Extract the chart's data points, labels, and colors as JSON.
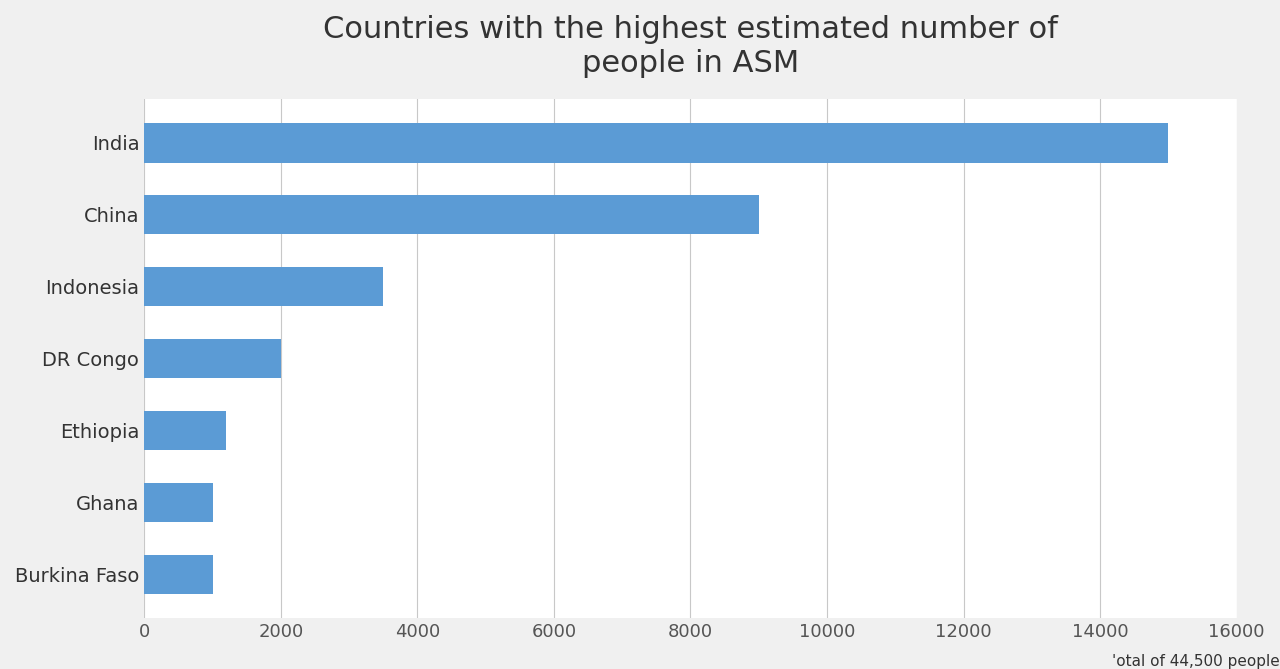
{
  "title": "Countries with the highest estimated number of\npeople in ASM",
  "categories": [
    "India",
    "China",
    "Indonesia",
    "DR Congo",
    "Ethiopia",
    "Ghana",
    "Burkina Faso"
  ],
  "values": [
    15000,
    9000,
    3500,
    2000,
    1200,
    1000,
    1000
  ],
  "bar_color": "#5B9BD5",
  "xlim": [
    0,
    16000
  ],
  "xticks": [
    0,
    2000,
    4000,
    6000,
    8000,
    10000,
    12000,
    14000,
    16000
  ],
  "xtick_labels": [
    "0",
    "2000",
    "4000",
    "6000",
    "8000",
    "10000",
    "12000",
    "14000",
    "16000"
  ],
  "footnote": "'otal of 44,500 people",
  "background_color": "#f0f0f0",
  "plot_background_color": "#ffffff",
  "title_fontsize": 22,
  "label_fontsize": 14,
  "tick_fontsize": 13,
  "footnote_fontsize": 11
}
